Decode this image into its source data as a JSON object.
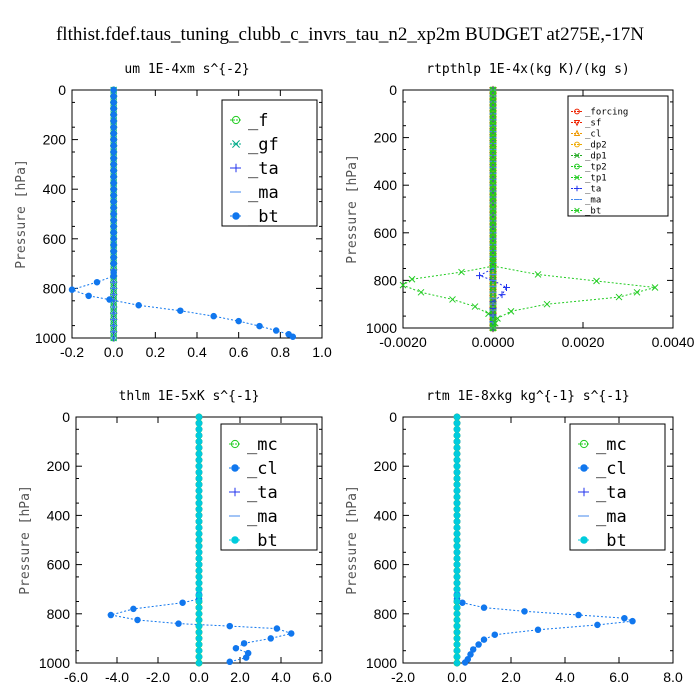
{
  "figure_title": "flthist.fdef.taus_tuning_clubb_c_invrs_tau_n2_xp2m  BUDGET at275E,-17N",
  "chart_data": [
    {
      "type": "line",
      "title": "um   1E-4xm s^{-2}",
      "xlabel": "",
      "ylabel": "Pressure [hPa]",
      "xlim": [
        -0.2,
        1.0
      ],
      "ylim": [
        1000,
        0
      ],
      "xticks": [
        "-0.2",
        "0.0",
        "0.2",
        "0.4",
        "0.6",
        "0.8",
        "1.0"
      ],
      "yticks": [
        "0",
        "200",
        "400",
        "600",
        "800",
        "1000"
      ],
      "legend_position": "top-right",
      "grid": false,
      "series": [
        {
          "name": "_f",
          "color": "#22cc22",
          "marker": "circle",
          "points": [
            [
              0,
              0
            ],
            [
              0,
              1000
            ]
          ]
        },
        {
          "name": "_gf",
          "color": "#00aa88",
          "marker": "cross",
          "points": [
            [
              0,
              0
            ],
            [
              0,
              1000
            ]
          ]
        },
        {
          "name": "_ta",
          "color": "#2233ee",
          "marker": "plus",
          "points": [
            [
              0,
              0
            ],
            [
              0,
              1000
            ]
          ]
        },
        {
          "name": "_ma",
          "color": "#4488ee",
          "marker": "dash",
          "points": [
            [
              0,
              0
            ],
            [
              0,
              1000
            ]
          ]
        },
        {
          "name": "_bt",
          "color": "#1177ee",
          "marker": "star",
          "points": [
            [
              0,
              0
            ],
            [
              0,
              700
            ],
            [
              0,
              735
            ],
            [
              0,
              750
            ],
            [
              -0.08,
              775
            ],
            [
              -0.2,
              805
            ],
            [
              -0.12,
              830
            ],
            [
              -0.02,
              845
            ],
            [
              0.12,
              868
            ],
            [
              0.32,
              890
            ],
            [
              0.48,
              912
            ],
            [
              0.6,
              932
            ],
            [
              0.7,
              952
            ],
            [
              0.78,
              970
            ],
            [
              0.84,
              985
            ],
            [
              0.86,
              995
            ]
          ]
        }
      ]
    },
    {
      "type": "line",
      "title": "rtpthlp   1E-4x(kg K)/(kg s)",
      "xlabel": "",
      "ylabel": "Pressure [hPa]",
      "xlim": [
        -0.002,
        0.004
      ],
      "ylim": [
        1000,
        0
      ],
      "xticks": [
        "-0.0020",
        "0.0000",
        "0.0020",
        "0.0040"
      ],
      "yticks": [
        "0",
        "200",
        "400",
        "600",
        "800",
        "1000"
      ],
      "legend_position": "top-right",
      "grid": false,
      "series": [
        {
          "name": "_forcing",
          "color": "#ee2200",
          "marker": "circle",
          "points": [
            [
              0,
              0
            ],
            [
              0,
              1000
            ]
          ]
        },
        {
          "name": "_sf",
          "color": "#ee2200",
          "marker": "triangle-down",
          "points": [
            [
              0,
              0
            ],
            [
              0,
              1000
            ]
          ]
        },
        {
          "name": "_cl",
          "color": "#ee9900",
          "marker": "triangle",
          "points": [
            [
              0,
              0
            ],
            [
              0,
              1000
            ]
          ]
        },
        {
          "name": "_dp2",
          "color": "#eeaa00",
          "marker": "circle",
          "points": [
            [
              0,
              0
            ],
            [
              0,
              1000
            ]
          ]
        },
        {
          "name": "_dp1",
          "color": "#22aa22",
          "marker": "cross",
          "points": [
            [
              0,
              0
            ],
            [
              0,
              1000
            ]
          ]
        },
        {
          "name": "_tp2",
          "color": "#22cc22",
          "marker": "circle",
          "points": [
            [
              0,
              0
            ],
            [
              0,
              1000
            ]
          ]
        },
        {
          "name": "_tp1",
          "color": "#22cc22",
          "marker": "cross",
          "points": [
            [
              0,
              0
            ],
            [
              0,
              700
            ],
            [
              0,
              740
            ],
            [
              -0.0007,
              765
            ],
            [
              -0.0018,
              795
            ],
            [
              -0.002,
              820
            ],
            [
              -0.0016,
              850
            ],
            [
              -0.0009,
              880
            ],
            [
              -0.0004,
              910
            ],
            [
              -0.0001,
              940
            ],
            [
              0,
              960
            ],
            [
              0,
              1000
            ]
          ]
        },
        {
          "name": "_ta",
          "color": "#2233ee",
          "marker": "plus",
          "points": [
            [
              0,
              0
            ],
            [
              0,
              700
            ],
            [
              0,
              750
            ],
            [
              -0.0003,
              780
            ],
            [
              0,
              800
            ],
            [
              0.0003,
              830
            ],
            [
              0.0002,
              860
            ],
            [
              0,
              890
            ],
            [
              0,
              1000
            ]
          ]
        },
        {
          "name": "_ma",
          "color": "#4488ee",
          "marker": "dash",
          "points": [
            [
              0,
              0
            ],
            [
              0,
              1000
            ]
          ]
        },
        {
          "name": "_bt",
          "color": "#22cc22",
          "marker": "cross",
          "points": [
            [
              0,
              0
            ],
            [
              0,
              700
            ],
            [
              0,
              740
            ],
            [
              0.001,
              775
            ],
            [
              0.0036,
              830
            ],
            [
              0.0028,
              870
            ],
            [
              0.0012,
              900
            ],
            [
              0.0004,
              930
            ],
            [
              0.0001,
              960
            ],
            [
              0,
              1000
            ]
          ]
        }
      ]
    },
    {
      "type": "line",
      "title": "thlm   1E-5xK s^{-1}",
      "xlabel": "",
      "ylabel": "Pressure [hPa]",
      "xlim": [
        -6.0,
        6.0
      ],
      "ylim": [
        1000,
        0
      ],
      "xticks": [
        "-6.0",
        "-4.0",
        "-2.0",
        "0.0",
        "2.0",
        "4.0",
        "6.0"
      ],
      "yticks": [
        "0",
        "200",
        "400",
        "600",
        "800",
        "1000"
      ],
      "legend_position": "top-right",
      "grid": false,
      "series": [
        {
          "name": "_mc",
          "color": "#22cc22",
          "marker": "circle",
          "points": [
            [
              0,
              0
            ],
            [
              0,
              1000
            ]
          ]
        },
        {
          "name": "_cl",
          "color": "#1177ee",
          "marker": "star",
          "points": [
            [
              0,
              0
            ],
            [
              0,
              700
            ],
            [
              0,
              740
            ],
            [
              -0.8,
              755
            ],
            [
              -3.2,
              780
            ],
            [
              -4.3,
              805
            ],
            [
              -3.0,
              825
            ],
            [
              -1.0,
              840
            ],
            [
              1.5,
              850
            ],
            [
              3.8,
              860
            ],
            [
              4.5,
              880
            ],
            [
              3.5,
              900
            ],
            [
              2.2,
              920
            ],
            [
              1.8,
              940
            ],
            [
              2.4,
              960
            ],
            [
              2.3,
              978
            ],
            [
              1.5,
              995
            ]
          ]
        },
        {
          "name": "_ta",
          "color": "#2233ee",
          "marker": "plus",
          "points": [
            [
              0,
              0
            ],
            [
              0,
              1000
            ]
          ]
        },
        {
          "name": "_ma",
          "color": "#4488ee",
          "marker": "dash",
          "points": [
            [
              0,
              0
            ],
            [
              0,
              1000
            ]
          ]
        },
        {
          "name": "_bt",
          "color": "#00ccdd",
          "marker": "star",
          "points": [
            [
              0,
              0
            ],
            [
              0,
              1000
            ]
          ]
        }
      ]
    },
    {
      "type": "line",
      "title": "rtm   1E-8xkg kg^{-1} s^{-1}",
      "xlabel": "",
      "ylabel": "Pressure [hPa]",
      "xlim": [
        -2.0,
        8.0
      ],
      "ylim": [
        1000,
        0
      ],
      "xticks": [
        "-2.0",
        "0.0",
        "2.0",
        "4.0",
        "6.0",
        "8.0"
      ],
      "yticks": [
        "0",
        "200",
        "400",
        "600",
        "800",
        "1000"
      ],
      "legend_position": "top-right",
      "grid": false,
      "series": [
        {
          "name": "_mc",
          "color": "#22cc22",
          "marker": "circle",
          "points": [
            [
              0,
              0
            ],
            [
              0,
              1000
            ]
          ]
        },
        {
          "name": "_cl",
          "color": "#1177ee",
          "marker": "star",
          "points": [
            [
              0,
              0
            ],
            [
              0,
              700
            ],
            [
              0,
              740
            ],
            [
              0.2,
              755
            ],
            [
              1.0,
              775
            ],
            [
              2.5,
              790
            ],
            [
              4.5,
              805
            ],
            [
              6.2,
              818
            ],
            [
              6.5,
              830
            ],
            [
              5.2,
              845
            ],
            [
              3.0,
              865
            ],
            [
              1.4,
              885
            ],
            [
              1.0,
              905
            ],
            [
              0.8,
              925
            ],
            [
              0.6,
              945
            ],
            [
              0.5,
              965
            ],
            [
              0.4,
              985
            ],
            [
              0.3,
              998
            ]
          ]
        },
        {
          "name": "_ta",
          "color": "#2233ee",
          "marker": "plus",
          "points": [
            [
              0,
              0
            ],
            [
              0,
              1000
            ]
          ]
        },
        {
          "name": "_ma",
          "color": "#4488ee",
          "marker": "dash",
          "points": [
            [
              0,
              0
            ],
            [
              0,
              1000
            ]
          ]
        },
        {
          "name": "_bt",
          "color": "#00ccdd",
          "marker": "star",
          "points": [
            [
              0,
              0
            ],
            [
              0,
              1000
            ]
          ]
        }
      ]
    }
  ]
}
